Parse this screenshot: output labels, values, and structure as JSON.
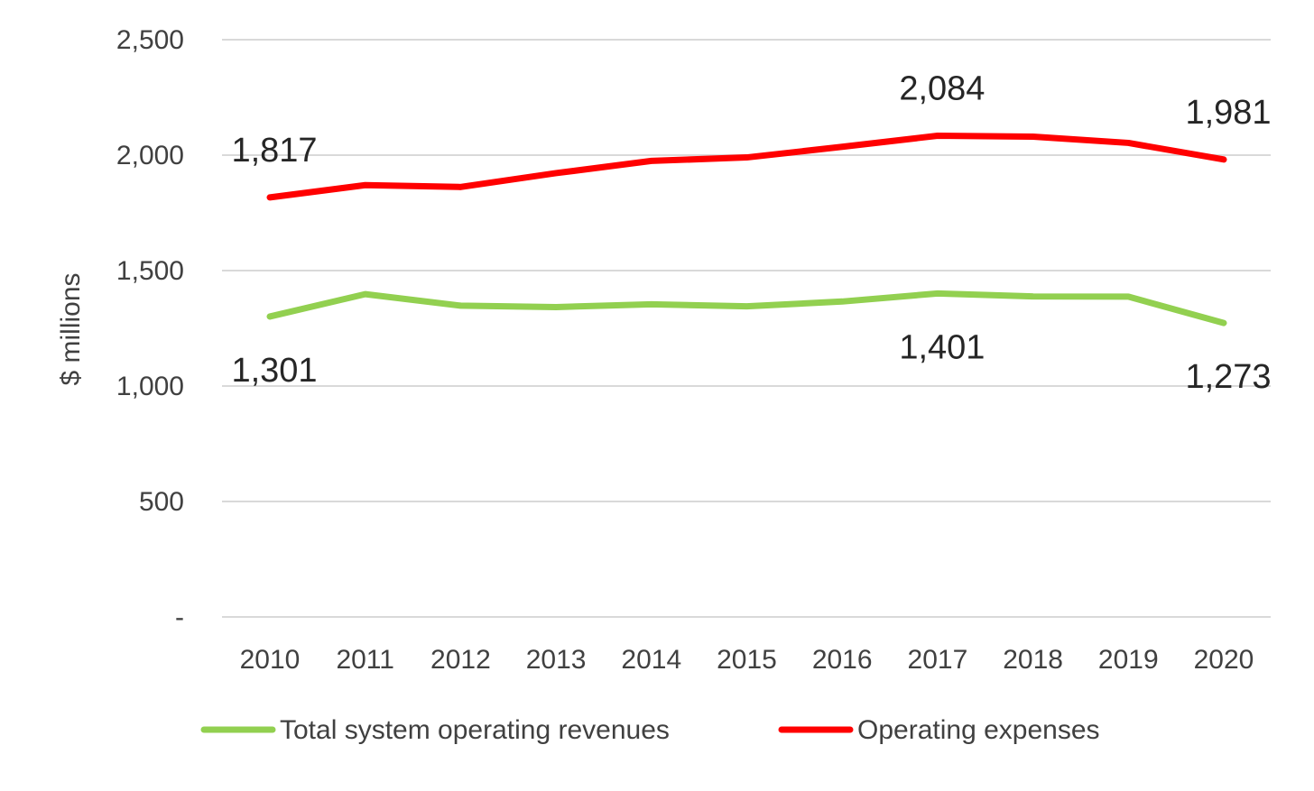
{
  "chart_data": {
    "type": "line",
    "categories": [
      "2010",
      "2011",
      "2012",
      "2013",
      "2014",
      "2015",
      "2016",
      "2017",
      "2018",
      "2019",
      "2020"
    ],
    "ylabel": "$ millions",
    "ylim": [
      0,
      2500
    ],
    "yticks": [
      {
        "value": 0,
        "label": "-"
      },
      {
        "value": 500,
        "label": "500"
      },
      {
        "value": 1000,
        "label": "1,000"
      },
      {
        "value": 1500,
        "label": "1,500"
      },
      {
        "value": 2000,
        "label": "2,000"
      },
      {
        "value": 2500,
        "label": "2,500"
      }
    ],
    "grid": true,
    "legend_position": "bottom",
    "series": [
      {
        "name": "Total system operating revenues",
        "color": "#92d050",
        "values": [
          1301,
          1398,
          1348,
          1342,
          1354,
          1345,
          1366,
          1401,
          1388,
          1387,
          1273
        ],
        "data_labels": [
          {
            "index": 0,
            "text": "1,301",
            "placement": "below"
          },
          {
            "index": 7,
            "text": "1,401",
            "placement": "below"
          },
          {
            "index": 10,
            "text": "1,273",
            "placement": "below"
          }
        ]
      },
      {
        "name": "Operating expenses",
        "color": "#ff0000",
        "values": [
          1817,
          1870,
          1862,
          1922,
          1975,
          1990,
          2036,
          2084,
          2080,
          2053,
          1981
        ],
        "data_labels": [
          {
            "index": 0,
            "text": "1,817",
            "placement": "above"
          },
          {
            "index": 7,
            "text": "2,084",
            "placement": "above"
          },
          {
            "index": 10,
            "text": "1,981",
            "placement": "above"
          }
        ]
      }
    ]
  }
}
